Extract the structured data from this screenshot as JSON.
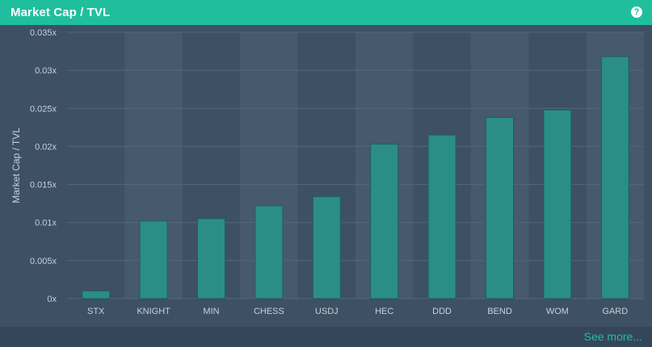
{
  "header": {
    "title": "Market Cap / TVL",
    "help_icon": "question-circle-icon"
  },
  "footer": {
    "see_more_label": "See more..."
  },
  "colors": {
    "header_bg": "#1fbf9e",
    "panel_bg": "#3e5064",
    "band_alt": "#47596c",
    "bar_fill": "#2b8e86",
    "bar_stroke": "#1d5f5d",
    "grid": "#53677b",
    "text": "#c7d0db",
    "accent": "#1fbf9e"
  },
  "chart_data": {
    "type": "bar",
    "title": "Market Cap / TVL",
    "xlabel": "",
    "ylabel": "Market Cap / TVL",
    "categories": [
      "STX",
      "KNIGHT",
      "MIN",
      "CHESS",
      "USDJ",
      "HEC",
      "DDD",
      "BEND",
      "WOM",
      "GARD"
    ],
    "values": [
      0.001,
      0.0102,
      0.0105,
      0.0122,
      0.0134,
      0.0203,
      0.0215,
      0.0238,
      0.0248,
      0.0318
    ],
    "ylim": [
      0,
      0.035
    ],
    "yticks": [
      0,
      0.005,
      0.01,
      0.015,
      0.02,
      0.025,
      0.03,
      0.035
    ],
    "ytick_labels": [
      "0x",
      "0.005x",
      "0.01x",
      "0.015x",
      "0.02x",
      "0.025x",
      "0.03x",
      "0.035x"
    ],
    "grid": true,
    "legend": "none"
  }
}
